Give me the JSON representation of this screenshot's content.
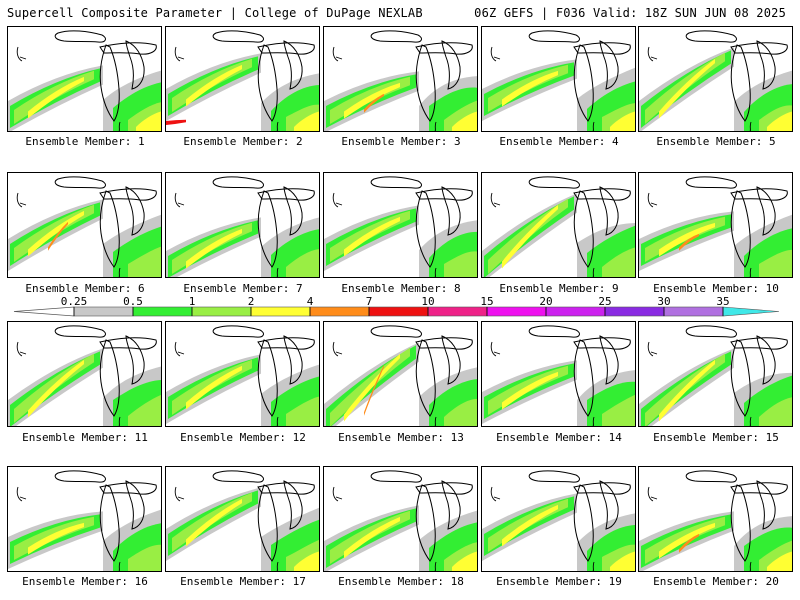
{
  "header": {
    "title": "Supercell Composite Parameter | College of DuPage NEXLAB",
    "valid": "06Z GEFS | F036 Valid: 18Z SUN JUN 08 2025"
  },
  "caption_prefix": "Ensemble Member:",
  "members": [
    {
      "id": 1,
      "label": "Ensemble Member: 1"
    },
    {
      "id": 2,
      "label": "Ensemble Member: 2"
    },
    {
      "id": 3,
      "label": "Ensemble Member: 3"
    },
    {
      "id": 4,
      "label": "Ensemble Member: 4"
    },
    {
      "id": 5,
      "label": "Ensemble Member: 5"
    },
    {
      "id": 6,
      "label": "Ensemble Member: 6"
    },
    {
      "id": 7,
      "label": "Ensemble Member: 7"
    },
    {
      "id": 8,
      "label": "Ensemble Member: 8"
    },
    {
      "id": 9,
      "label": "Ensemble Member: 9"
    },
    {
      "id": 10,
      "label": "Ensemble Member: 10"
    },
    {
      "id": 11,
      "label": "Ensemble Member: 11"
    },
    {
      "id": 12,
      "label": "Ensemble Member: 12"
    },
    {
      "id": 13,
      "label": "Ensemble Member: 13"
    },
    {
      "id": 14,
      "label": "Ensemble Member: 14"
    },
    {
      "id": 15,
      "label": "Ensemble Member: 15"
    },
    {
      "id": 16,
      "label": "Ensemble Member: 16"
    },
    {
      "id": 17,
      "label": "Ensemble Member: 17"
    },
    {
      "id": 18,
      "label": "Ensemble Member: 18"
    },
    {
      "id": 19,
      "label": "Ensemble Member: 19"
    },
    {
      "id": 20,
      "label": "Ensemble Member: 20"
    }
  ],
  "colorbar": {
    "ticks": [
      "0.25",
      "0.5",
      "1",
      "2",
      "4",
      "7",
      "10",
      "15",
      "20",
      "25",
      "30",
      "35"
    ],
    "colors": [
      "#c8c8c8",
      "#33ee33",
      "#99ee44",
      "#ffff33",
      "#ff8c1a",
      "#ee1111",
      "#ee2288",
      "#ee11ee",
      "#cc22ee",
      "#8a2be2",
      "#b070e0",
      "#40e8e8"
    ]
  }
}
